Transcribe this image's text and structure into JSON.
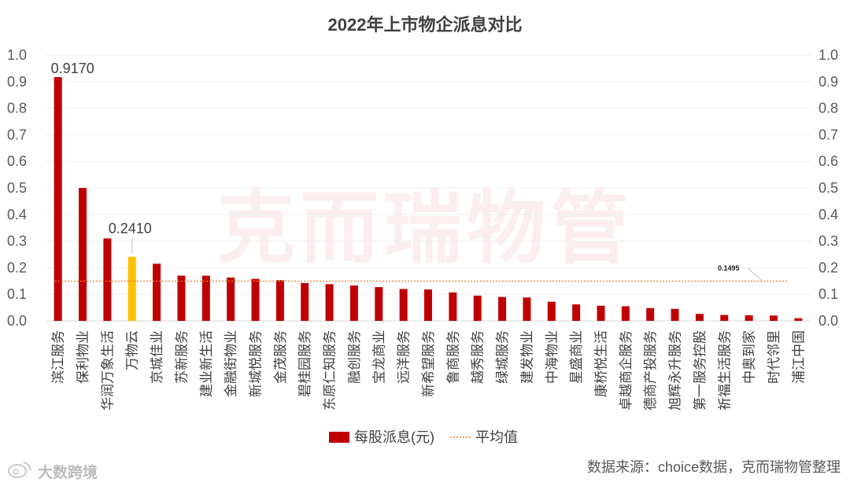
{
  "chart_data": {
    "type": "bar",
    "title": "2022年上市物企派息对比",
    "categories": [
      "滨江服务",
      "保利物业",
      "华润万象生活",
      "万物云",
      "京城佳业",
      "苏新服务",
      "建业新生活",
      "金融街物业",
      "新城悦服务",
      "金茂服务",
      "碧桂园服务",
      "东原仁知服务",
      "融创服务",
      "宝龙商业",
      "远洋服务",
      "新希望服务",
      "鲁商服务",
      "越秀服务",
      "绿城服务",
      "建发物业",
      "中海物业",
      "星盛商业",
      "康桥悦生活",
      "卓越商企服务",
      "德商产投服务",
      "旭辉永升服务",
      "第一服务控股",
      "祈福生活服务",
      "中奥到家",
      "时代邻里",
      "浦江中国"
    ],
    "series": [
      {
        "name": "每股派息(元)",
        "values": [
          0.917,
          0.5,
          0.31,
          0.241,
          0.215,
          0.17,
          0.17,
          0.163,
          0.158,
          0.153,
          0.142,
          0.138,
          0.133,
          0.127,
          0.12,
          0.118,
          0.107,
          0.095,
          0.09,
          0.088,
          0.072,
          0.062,
          0.057,
          0.055,
          0.048,
          0.045,
          0.026,
          0.022,
          0.021,
          0.02,
          0.01
        ]
      }
    ],
    "highlight_index": 3,
    "data_labels": [
      {
        "index": 0,
        "text": "0.9170"
      },
      {
        "index": 3,
        "text": "0.2410"
      }
    ],
    "average": {
      "name": "平均值",
      "value": 0.1495,
      "label": "0.1495"
    },
    "ylim": [
      0,
      1.0
    ],
    "yticks": [
      "0.0",
      "0.1",
      "0.2",
      "0.3",
      "0.4",
      "0.5",
      "0.6",
      "0.7",
      "0.8",
      "0.9",
      "1.0"
    ],
    "xlabel": "",
    "ylabel": "",
    "legend_position": "bottom"
  },
  "colors": {
    "bar": "#c00000",
    "highlight": "#ffc000",
    "average_line": "#ed7d31",
    "watermark": "#d9141b"
  },
  "watermark_text": "克而瑞物管",
  "logo_text": "大数跨境",
  "source_text": "数据来源：choice数据，克而瑞物管整理"
}
